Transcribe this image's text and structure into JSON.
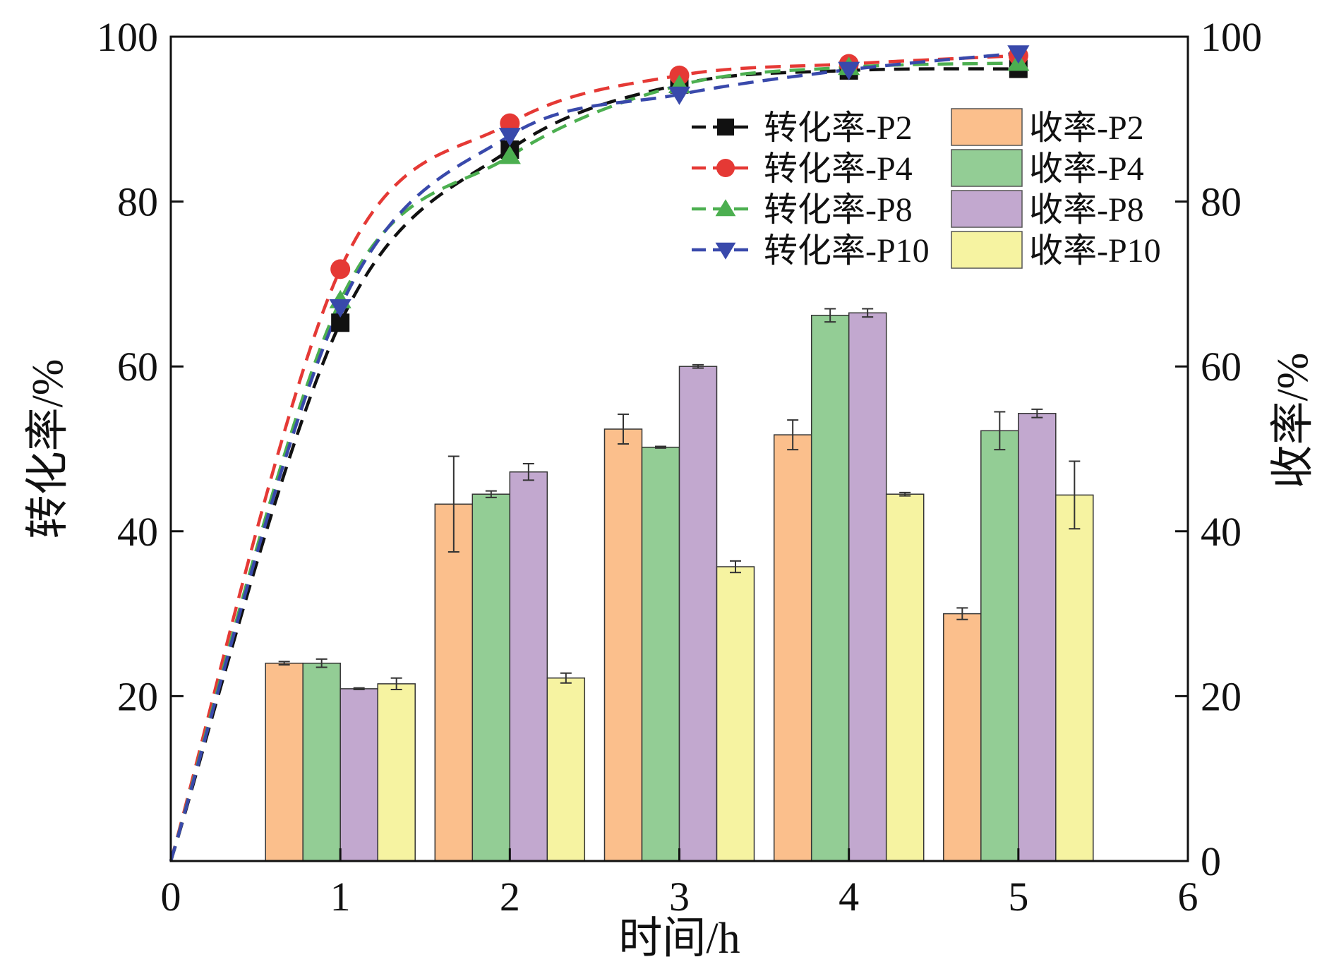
{
  "chart_data": {
    "type": "bar+line",
    "title": "",
    "xlabel": "时间/h",
    "ylabel_left": "转化率/%",
    "ylabel_right": "收率/%",
    "xlim": [
      0,
      6
    ],
    "ylim_left": [
      0,
      100
    ],
    "ylim_right": [
      0,
      100
    ],
    "x_ticks": [
      0,
      1,
      2,
      3,
      4,
      5,
      6
    ],
    "x_tick_labels": [
      "0",
      "1",
      "2",
      "3",
      "4",
      "5",
      "6"
    ],
    "left_ticks": [
      20,
      40,
      60,
      80,
      100
    ],
    "left_tick_labels": [
      "20",
      "40",
      "60",
      "80",
      "100"
    ],
    "right_ticks": [
      0,
      20,
      40,
      60,
      80,
      100
    ],
    "right_tick_labels": [
      "0",
      "20",
      "40",
      "60",
      "80",
      "100"
    ],
    "grid": false,
    "legend_position": "top-right",
    "line_series": [
      {
        "name": "转化率-P2",
        "color": "#111111",
        "marker": "square",
        "x": [
          0,
          1,
          2,
          3,
          4,
          5
        ],
        "y": [
          0,
          65.3,
          86.3,
          94.2,
          95.9,
          96.1
        ]
      },
      {
        "name": "转化率-P4",
        "color": "#e53935",
        "marker": "circle",
        "x": [
          0,
          1,
          2,
          3,
          4,
          5
        ],
        "y": [
          0,
          71.8,
          89.5,
          95.3,
          96.7,
          97.7
        ]
      },
      {
        "name": "转化率-P8",
        "color": "#4caf50",
        "marker": "triangle-up",
        "x": [
          0,
          1,
          2,
          3,
          4,
          5
        ],
        "y": [
          0,
          68.0,
          85.5,
          94.1,
          96.3,
          96.8
        ]
      },
      {
        "name": "转化率-P10",
        "color": "#3949ab",
        "marker": "triangle-down",
        "x": [
          0,
          1,
          2,
          3,
          4,
          5
        ],
        "y": [
          0,
          67.2,
          88.0,
          93.0,
          96.0,
          98.0
        ]
      }
    ],
    "bar_series": [
      {
        "name": "收率-P2",
        "color": "#fbbf8c",
        "x": [
          1,
          2,
          3,
          4,
          5
        ],
        "values": [
          24.0,
          43.3,
          52.4,
          51.7,
          30.0
        ],
        "errors": [
          0.2,
          5.8,
          1.8,
          1.8,
          0.7
        ]
      },
      {
        "name": "收率-P4",
        "color": "#93cd95",
        "x": [
          1,
          2,
          3,
          4,
          5
        ],
        "values": [
          24.0,
          44.5,
          50.2,
          66.2,
          52.2
        ],
        "errors": [
          0.5,
          0.4,
          0.1,
          0.8,
          2.3
        ]
      },
      {
        "name": "收率-P8",
        "color": "#c2a8cf",
        "x": [
          1,
          2,
          3,
          4,
          5
        ],
        "values": [
          20.9,
          47.2,
          60.0,
          66.5,
          54.3
        ],
        "errors": [
          0.1,
          1.0,
          0.2,
          0.5,
          0.5
        ]
      },
      {
        "name": "收率-P10",
        "color": "#f6f3a1",
        "x": [
          1,
          2,
          3,
          4,
          5
        ],
        "values": [
          21.5,
          22.2,
          35.7,
          44.5,
          44.4
        ],
        "errors": [
          0.7,
          0.6,
          0.7,
          0.2,
          4.1
        ]
      }
    ]
  }
}
